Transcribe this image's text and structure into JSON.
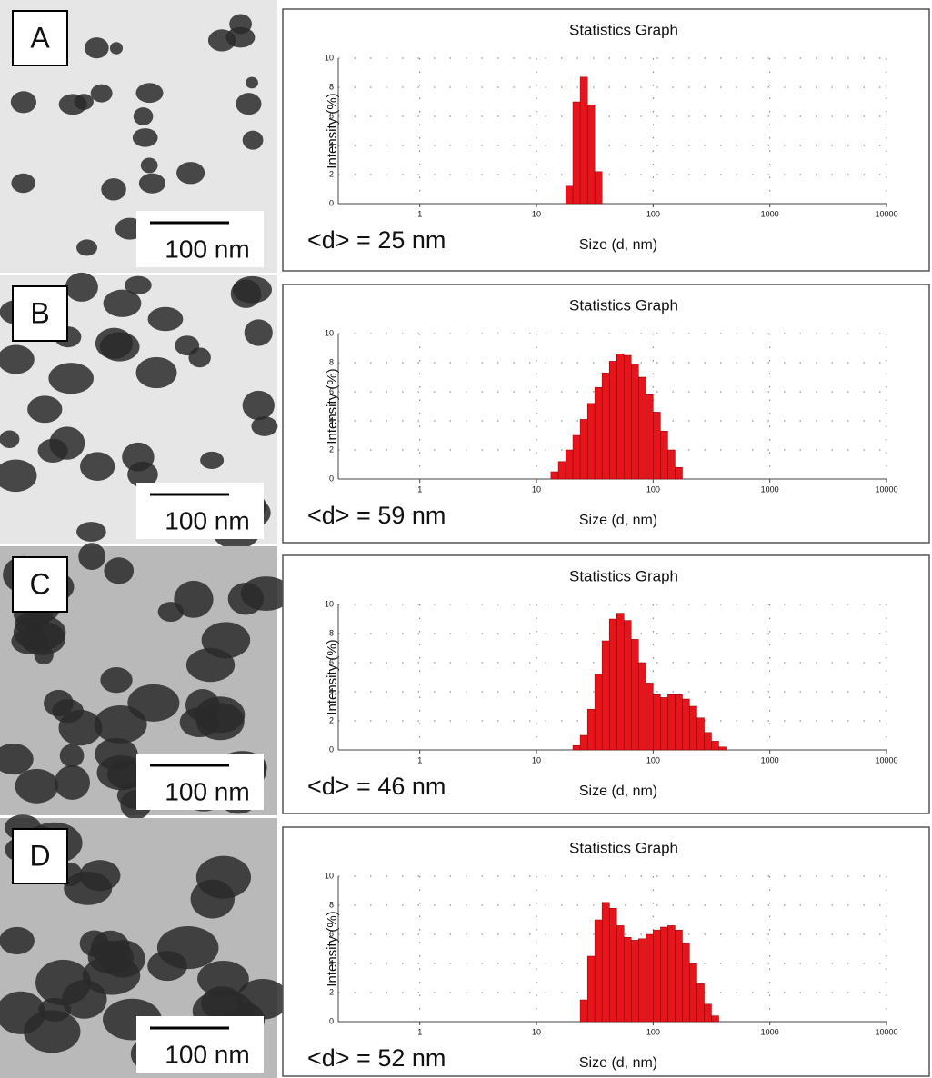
{
  "chart_data": [
    {
      "type": "histogram",
      "panel_label": "A",
      "scale_label": "100 nm",
      "title": "Statistics Graph",
      "xlabel": "Size (d, nm)",
      "ylabel": "Intensity (%)",
      "annotation": "<d> = 25 nm",
      "log_x": true,
      "grid": true,
      "color": "#e8141c",
      "xlim": [
        0.2,
        10000
      ],
      "xticks": [
        1,
        10,
        100,
        1000,
        10000
      ],
      "ylim": [
        0,
        10
      ],
      "yticks": [
        0,
        2,
        4,
        6,
        8,
        10
      ],
      "bins": [
        17.8,
        20.5,
        23.7,
        27.4,
        31.6,
        36.5
      ],
      "values": [
        1.2,
        7.0,
        8.7,
        6.8,
        2.2
      ]
    },
    {
      "type": "histogram",
      "panel_label": "B",
      "scale_label": "100 nm",
      "title": "Statistics Graph",
      "xlabel": "Size (d, nm)",
      "ylabel": "Intensity (%)",
      "annotation": "<d> = 59 nm",
      "log_x": true,
      "grid": true,
      "color": "#e8141c",
      "xlim": [
        0.2,
        10000
      ],
      "xticks": [
        1,
        10,
        100,
        1000,
        10000
      ],
      "ylim": [
        0,
        10
      ],
      "yticks": [
        0,
        2,
        4,
        6,
        8,
        10
      ],
      "bins": [
        13.3,
        15.4,
        17.8,
        20.5,
        23.7,
        27.4,
        31.6,
        36.5,
        42.2,
        48.7,
        56.2,
        64.9,
        75.0,
        86.6,
        100,
        115.5,
        133.4,
        154,
        178
      ],
      "values": [
        0.5,
        1.2,
        2.0,
        3.0,
        4.1,
        5.2,
        6.3,
        7.3,
        8.1,
        8.6,
        8.5,
        7.9,
        7.0,
        5.8,
        4.6,
        3.3,
        2.0,
        0.8
      ]
    },
    {
      "type": "histogram",
      "panel_label": "C",
      "scale_label": "100 nm",
      "title": "Statistics Graph",
      "xlabel": "Size (d, nm)",
      "ylabel": "Intensity (%)",
      "annotation": "<d> = 46 nm",
      "log_x": true,
      "grid": true,
      "color": "#e8141c",
      "xlim": [
        0.2,
        10000
      ],
      "xticks": [
        1,
        10,
        100,
        1000,
        10000
      ],
      "ylim": [
        0,
        10
      ],
      "yticks": [
        0,
        2,
        4,
        6,
        8,
        10
      ],
      "bins": [
        20.5,
        23.7,
        27.4,
        31.6,
        36.5,
        42.2,
        48.7,
        56.2,
        64.9,
        75.0,
        86.6,
        100,
        115.5,
        133.4,
        154,
        178,
        205,
        237,
        274,
        316,
        365,
        422
      ],
      "values": [
        0.3,
        1.0,
        2.8,
        5.2,
        7.5,
        9.0,
        9.4,
        8.9,
        7.6,
        6.0,
        4.6,
        3.8,
        3.6,
        3.8,
        3.8,
        3.5,
        3.0,
        2.2,
        1.2,
        0.6,
        0.2
      ]
    },
    {
      "type": "histogram",
      "panel_label": "D",
      "scale_label": "100 nm",
      "title": "Statistics Graph",
      "xlabel": "Size (d, nm)",
      "ylabel": "Intensity (%)",
      "annotation": "<d> = 52 nm",
      "log_x": true,
      "grid": true,
      "color": "#e8141c",
      "xlim": [
        0.2,
        10000
      ],
      "xticks": [
        1,
        10,
        100,
        1000,
        10000
      ],
      "ylim": [
        0,
        10
      ],
      "yticks": [
        0,
        2,
        4,
        6,
        8,
        10
      ],
      "bins": [
        23.7,
        27.4,
        31.6,
        36.5,
        42.2,
        48.7,
        56.2,
        64.9,
        75.0,
        86.6,
        100,
        115.5,
        133.4,
        154,
        178,
        205,
        237,
        274,
        316,
        365
      ],
      "values": [
        1.5,
        4.5,
        7.0,
        8.2,
        7.8,
        6.6,
        5.8,
        5.6,
        5.7,
        6.0,
        6.3,
        6.5,
        6.6,
        6.3,
        5.4,
        4.0,
        2.6,
        1.2,
        0.4
      ]
    }
  ]
}
